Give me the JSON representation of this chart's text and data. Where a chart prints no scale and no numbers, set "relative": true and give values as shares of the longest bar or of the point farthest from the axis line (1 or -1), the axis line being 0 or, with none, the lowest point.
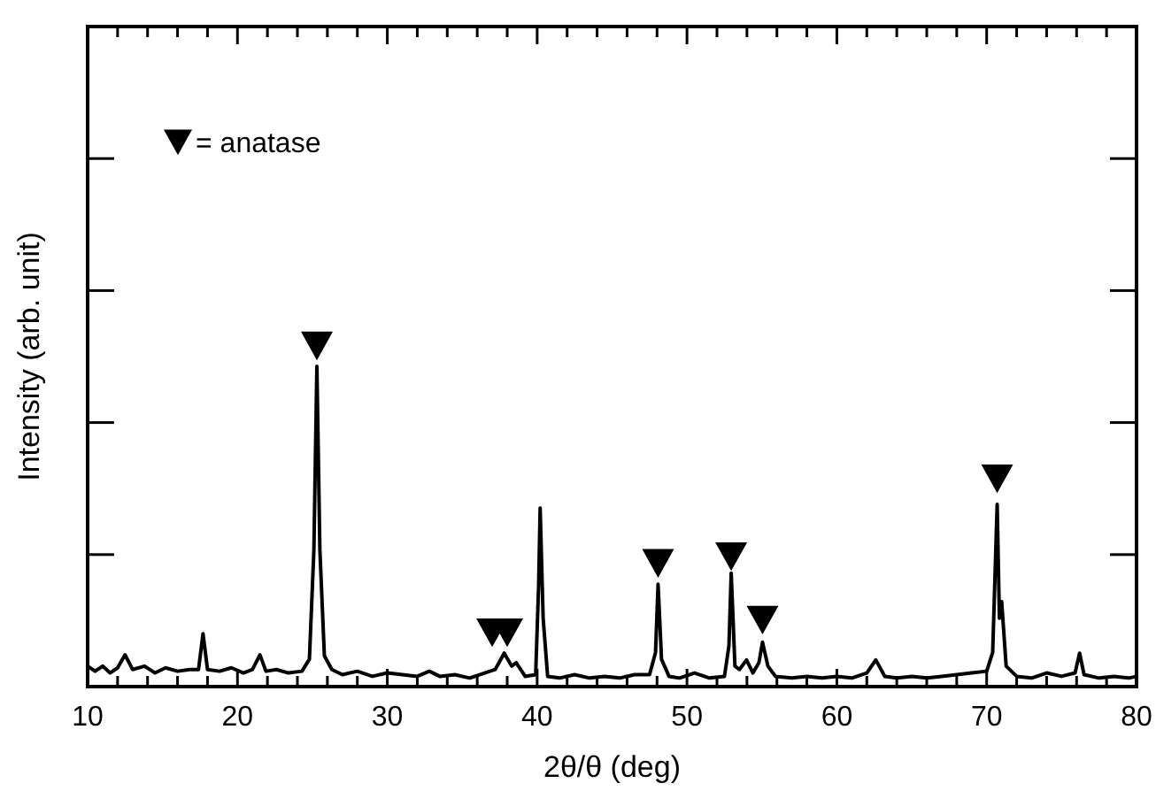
{
  "chart_data": {
    "type": "line",
    "relative": true,
    "xlabel": "2θ/θ (deg)",
    "ylabel": "Intensity (arb. unit)",
    "xlim": [
      10,
      80
    ],
    "xticks": [
      10,
      {
        "value": 12,
        "label": null
      },
      {
        "value": 14,
        "label": null
      },
      {
        "value": 16,
        "label": null
      },
      {
        "value": 18,
        "label": null
      },
      20,
      {
        "value": 22,
        "label": null
      },
      {
        "value": 24,
        "label": null
      },
      {
        "value": 26,
        "label": null
      },
      {
        "value": 28,
        "label": null
      },
      30,
      {
        "value": 32,
        "label": null
      },
      {
        "value": 34,
        "label": null
      },
      {
        "value": 36,
        "label": null
      },
      {
        "value": 38,
        "label": null
      },
      40,
      {
        "value": 42,
        "label": null
      },
      {
        "value": 44,
        "label": null
      },
      {
        "value": 46,
        "label": null
      },
      {
        "value": 48,
        "label": null
      },
      50,
      {
        "value": 52,
        "label": null
      },
      {
        "value": 54,
        "label": null
      },
      {
        "value": 56,
        "label": null
      },
      {
        "value": 58,
        "label": null
      },
      60,
      {
        "value": 62,
        "label": null
      },
      {
        "value": 64,
        "label": null
      },
      {
        "value": 66,
        "label": null
      },
      {
        "value": 68,
        "label": null
      },
      70,
      {
        "value": 72,
        "label": null
      },
      {
        "value": 74,
        "label": null
      },
      {
        "value": 76,
        "label": null
      },
      {
        "value": 78,
        "label": null
      },
      80
    ],
    "legend": "top left",
    "tick_labels": "x",
    "series": [
      {
        "color": "#000000",
        "marker": "none",
        "line_style": "solid",
        "x": [
          10,
          10.5,
          11,
          11.5,
          12,
          12.5,
          13,
          13.8,
          14.5,
          15.2,
          16,
          16.8,
          17.4,
          17.7,
          18,
          18.8,
          19.6,
          20.4,
          21,
          21.5,
          21.9,
          22.6,
          23.4,
          24.3,
          24.8,
          25.1,
          25.3,
          25.5,
          25.8,
          26.3,
          27,
          28,
          29,
          30,
          31,
          32,
          32.8,
          33.5,
          34.5,
          35.5,
          36.5,
          37.2,
          37.8,
          38.3,
          38.6,
          39.2,
          39.9,
          40.1,
          40.2,
          40.4,
          40.7,
          41.5,
          42.5,
          43.5,
          44.5,
          45.5,
          46.5,
          47.5,
          47.9,
          48.07,
          48.3,
          48.8,
          49.5,
          50.5,
          51.5,
          52.5,
          52.8,
          52.95,
          53.2,
          53.5,
          53.97,
          54.4,
          54.8,
          55.04,
          55.4,
          55.9,
          57,
          58,
          59,
          60,
          61,
          62,
          62.6,
          63.2,
          64,
          65,
          66,
          67,
          68,
          69,
          70,
          70.4,
          70.7,
          70.85,
          71.0,
          71.3,
          72,
          73,
          74,
          75,
          75.9,
          76.2,
          76.5,
          77.5,
          78.5,
          79.5,
          80
        ],
        "values": [
          0.06,
          0.045,
          0.06,
          0.04,
          0.055,
          0.093,
          0.05,
          0.06,
          0.04,
          0.055,
          0.045,
          0.05,
          0.05,
          0.155,
          0.05,
          0.045,
          0.055,
          0.04,
          0.05,
          0.093,
          0.045,
          0.05,
          0.04,
          0.045,
          0.08,
          0.4,
          0.938,
          0.4,
          0.09,
          0.05,
          0.035,
          0.045,
          0.03,
          0.04,
          0.035,
          0.03,
          0.045,
          0.03,
          0.035,
          0.025,
          0.04,
          0.05,
          0.098,
          0.06,
          0.07,
          0.03,
          0.035,
          0.3,
          0.523,
          0.2,
          0.03,
          0.025,
          0.035,
          0.025,
          0.03,
          0.025,
          0.035,
          0.035,
          0.1,
          0.3,
          0.08,
          0.03,
          0.025,
          0.04,
          0.025,
          0.03,
          0.12,
          0.332,
          0.06,
          0.05,
          0.078,
          0.04,
          0.07,
          0.13,
          0.06,
          0.03,
          0.025,
          0.03,
          0.025,
          0.03,
          0.025,
          0.04,
          0.078,
          0.03,
          0.025,
          0.03,
          0.025,
          0.03,
          0.035,
          0.04,
          0.045,
          0.1,
          0.534,
          0.2,
          0.249,
          0.06,
          0.03,
          0.025,
          0.04,
          0.03,
          0.04,
          0.098,
          0.035,
          0.025,
          0.03,
          0.025,
          0.03
        ]
      },
      {
        "type": "scatter",
        "name": "= anatase",
        "color": "#000000",
        "marker": "triangle",
        "x": [
          25.3,
          37.0,
          38.0,
          48.07,
          52.95,
          55.04,
          70.7
        ],
        "values": [
          1,
          0.16,
          0.16,
          0.363,
          0.383,
          0.197,
          0.611
        ]
      }
    ]
  }
}
